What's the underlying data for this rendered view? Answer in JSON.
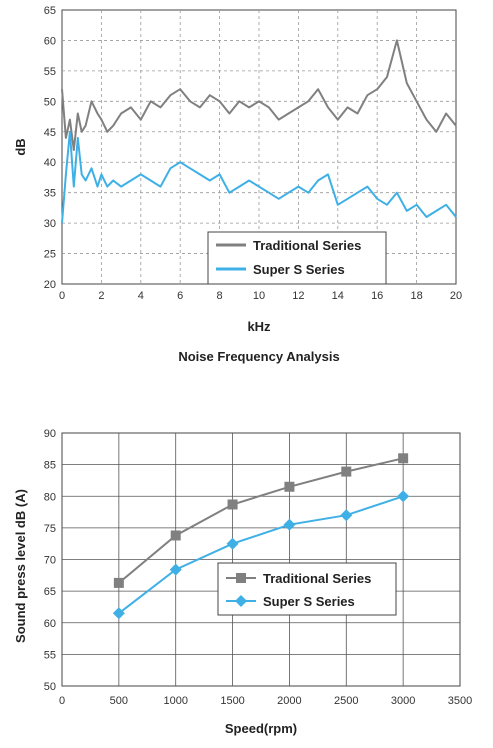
{
  "colors": {
    "traditional": "#808080",
    "super_s": "#3fb0e6"
  },
  "chart_data": [
    {
      "type": "line",
      "title": "Noise Frequency Analysis",
      "xlabel": "kHz",
      "ylabel": "dB",
      "xlim": [
        0,
        20
      ],
      "ylim": [
        20,
        65
      ],
      "xticks": [
        "0",
        "2",
        "4",
        "6",
        "8",
        "10",
        "12",
        "14",
        "16",
        "18",
        "20"
      ],
      "yticks": [
        "20",
        "25",
        "30",
        "35",
        "40",
        "45",
        "50",
        "55",
        "60",
        "65"
      ],
      "grid": "dashed",
      "legend": "bottom-right",
      "series": [
        {
          "name": "Traditional Series",
          "x": [
            0,
            0.2,
            0.4,
            0.6,
            0.8,
            1.0,
            1.2,
            1.5,
            1.8,
            2.0,
            2.3,
            2.6,
            3.0,
            3.5,
            4.0,
            4.5,
            5.0,
            5.5,
            6.0,
            6.5,
            7.0,
            7.5,
            8.0,
            8.5,
            9.0,
            9.5,
            10.0,
            10.5,
            11.0,
            11.5,
            12.0,
            12.5,
            13.0,
            13.5,
            14.0,
            14.5,
            15.0,
            15.5,
            16.0,
            16.5,
            17.0,
            17.5,
            18.0,
            18.5,
            19.0,
            19.5,
            20.0
          ],
          "values": [
            52,
            44,
            47,
            42,
            48,
            45,
            46,
            50,
            48,
            47,
            45,
            46,
            48,
            49,
            47,
            50,
            49,
            51,
            52,
            50,
            49,
            51,
            50,
            48,
            50,
            49,
            50,
            49,
            47,
            48,
            49,
            50,
            52,
            49,
            47,
            49,
            48,
            51,
            52,
            54,
            60,
            53,
            50,
            47,
            45,
            48,
            46
          ]
        },
        {
          "name": "Super S Series",
          "x": [
            0,
            0.2,
            0.4,
            0.6,
            0.8,
            1.0,
            1.2,
            1.5,
            1.8,
            2.0,
            2.3,
            2.6,
            3.0,
            3.5,
            4.0,
            4.5,
            5.0,
            5.5,
            6.0,
            6.5,
            7.0,
            7.5,
            8.0,
            8.5,
            9.0,
            9.5,
            10.0,
            10.5,
            11.0,
            11.5,
            12.0,
            12.5,
            13.0,
            13.5,
            14.0,
            14.5,
            15.0,
            15.5,
            16.0,
            16.5,
            17.0,
            17.5,
            18.0,
            18.5,
            19.0,
            19.5,
            20.0
          ],
          "values": [
            30,
            38,
            45,
            36,
            44,
            38,
            37,
            39,
            36,
            38,
            36,
            37,
            36,
            37,
            38,
            37,
            36,
            39,
            40,
            39,
            38,
            37,
            38,
            35,
            36,
            37,
            36,
            35,
            34,
            35,
            36,
            35,
            37,
            38,
            33,
            34,
            35,
            36,
            34,
            33,
            35,
            32,
            33,
            31,
            32,
            33,
            31
          ]
        }
      ]
    },
    {
      "type": "line",
      "xlabel": "Speed(rpm)",
      "ylabel": "Sound press level dB (A)",
      "xlim": [
        0,
        3500
      ],
      "ylim": [
        50,
        90
      ],
      "xticks": [
        "0",
        "500",
        "1000",
        "1500",
        "2000",
        "2500",
        "3000",
        "3500"
      ],
      "yticks": [
        "50",
        "55",
        "60",
        "65",
        "70",
        "75",
        "80",
        "85",
        "90"
      ],
      "grid": "solid",
      "legend": "center-right",
      "series": [
        {
          "name": "Traditional Series",
          "marker": "square",
          "x": [
            500,
            1000,
            1500,
            2000,
            2500,
            3000
          ],
          "values": [
            66.3,
            73.8,
            78.7,
            81.5,
            83.9,
            86.0
          ]
        },
        {
          "name": "Super S Series",
          "marker": "diamond",
          "x": [
            500,
            1000,
            1500,
            2000,
            2500,
            3000
          ],
          "values": [
            61.5,
            68.4,
            72.5,
            75.5,
            77.0,
            80.0
          ]
        }
      ]
    }
  ]
}
